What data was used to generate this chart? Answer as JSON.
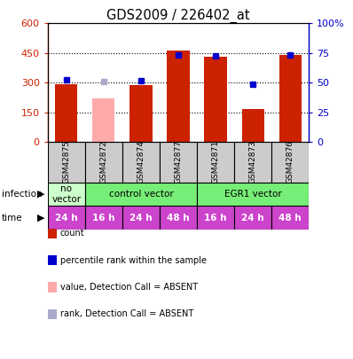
{
  "title": "GDS2009 / 226402_at",
  "samples": [
    "GSM42875",
    "GSM42872",
    "GSM42874",
    "GSM42877",
    "GSM42871",
    "GSM42873",
    "GSM42876"
  ],
  "bar_values": [
    293,
    218,
    287,
    462,
    430,
    168,
    440
  ],
  "bar_colors": [
    "#cc2200",
    "#ffaaaa",
    "#cc2200",
    "#cc2200",
    "#cc2200",
    "#cc2200",
    "#cc2200"
  ],
  "rank_values": [
    52.5,
    50.5,
    51.5,
    73.5,
    72.5,
    48.5,
    73.0
  ],
  "rank_colors": [
    "#0000cc",
    "#aaaacc",
    "#0000cc",
    "#0000cc",
    "#0000cc",
    "#0000cc",
    "#0000cc"
  ],
  "ylim_left": [
    0,
    600
  ],
  "ylim_right": [
    0,
    100
  ],
  "yticks_left": [
    0,
    150,
    300,
    450,
    600
  ],
  "yticks_right": [
    0,
    25,
    50,
    75,
    100
  ],
  "ylabel_left_color": "#cc2200",
  "ylabel_right_color": "#0000cc",
  "time_labels": [
    "24 h",
    "16 h",
    "24 h",
    "48 h",
    "16 h",
    "24 h",
    "48 h"
  ],
  "time_color": "#cc44cc",
  "legend_items": [
    {
      "label": "count",
      "color": "#cc2200"
    },
    {
      "label": "percentile rank within the sample",
      "color": "#0000cc"
    },
    {
      "label": "value, Detection Call = ABSENT",
      "color": "#ffaaaa"
    },
    {
      "label": "rank, Detection Call = ABSENT",
      "color": "#aaaacc"
    }
  ],
  "bg_color": "#ffffff"
}
